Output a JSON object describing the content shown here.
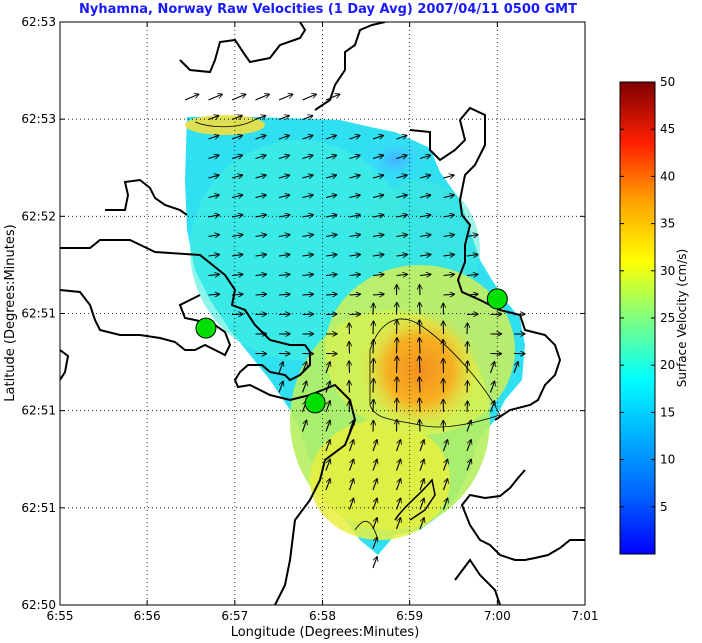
{
  "chart_data": {
    "type": "heatmap",
    "title": "Nyhamna, Norway Raw Velocities (1 Day Avg) 2007/04/11 0500 GMT",
    "xlabel": "Longitude (Degrees:Minutes)",
    "ylabel": "Latitude (Degrees:Minutes)",
    "x_ticks": [
      {
        "value": 6.9167,
        "label": "6:55"
      },
      {
        "value": 6.9333,
        "label": "6:56"
      },
      {
        "value": 6.95,
        "label": "6:57"
      },
      {
        "value": 6.9667,
        "label": "6:58"
      },
      {
        "value": 6.9833,
        "label": "6:59"
      },
      {
        "value": 7.0,
        "label": "7:00"
      },
      {
        "value": 7.0167,
        "label": "7:01"
      }
    ],
    "y_ticks": [
      {
        "value": 0,
        "label": "62:50"
      },
      {
        "value": 1,
        "label": "62:51"
      },
      {
        "value": 2,
        "label": "62:51"
      },
      {
        "value": 3,
        "label": "62:51"
      },
      {
        "value": 4,
        "label": "62:52"
      },
      {
        "value": 5,
        "label": "62:53"
      },
      {
        "value": 6,
        "label": "62:53"
      }
    ],
    "xlim": [
      6.9167,
      7.0167
    ],
    "ylim": [
      0,
      6
    ],
    "grid": true,
    "colorbar": {
      "label": "Surface Velocity (cm/s)",
      "min": 0,
      "max": 50,
      "ticks": [
        5,
        10,
        15,
        20,
        25,
        30,
        35,
        40,
        45,
        50
      ],
      "colormap": "jet"
    },
    "stations": [
      {
        "x": 6.9445,
        "y": 2.85
      },
      {
        "x": 6.9653,
        "y": 2.08
      },
      {
        "x": 7.0,
        "y": 3.15
      }
    ],
    "max_speed_region": {
      "x": 6.983,
      "y": 2.4,
      "value": 33
    }
  }
}
